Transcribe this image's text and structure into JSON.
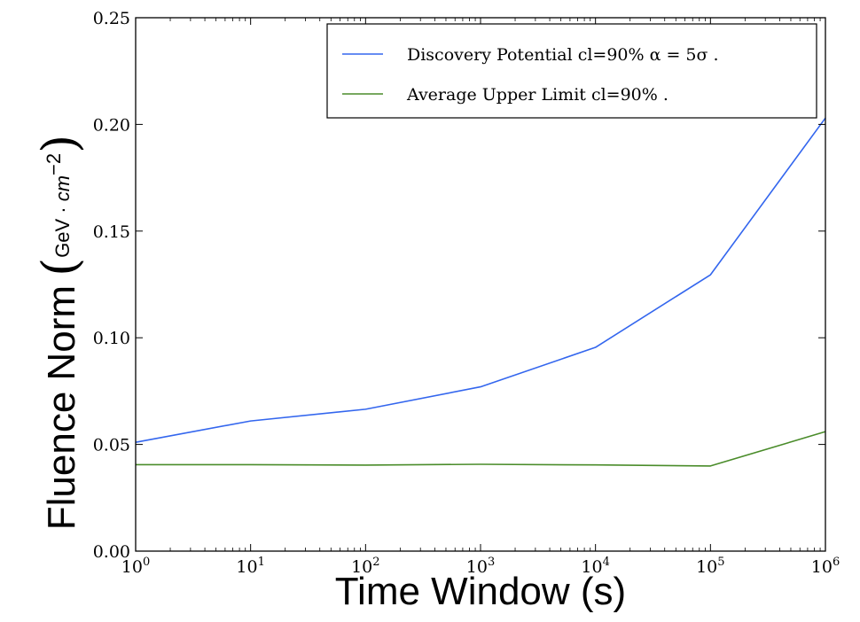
{
  "chart_data": {
    "type": "line",
    "xscale": "log",
    "x": [
      1,
      10,
      100,
      1000,
      10000,
      100000,
      1000000
    ],
    "xlim": [
      1,
      1000000
    ],
    "ylim": [
      0.0,
      0.25
    ],
    "xticks": [
      {
        "base": "10",
        "exp": "0"
      },
      {
        "base": "10",
        "exp": "1"
      },
      {
        "base": "10",
        "exp": "2"
      },
      {
        "base": "10",
        "exp": "3"
      },
      {
        "base": "10",
        "exp": "4"
      },
      {
        "base": "10",
        "exp": "5"
      },
      {
        "base": "10",
        "exp": "6"
      }
    ],
    "yticks": [
      0.0,
      0.05,
      0.1,
      0.15,
      0.2,
      0.25
    ],
    "ytick_labels": [
      "0.00",
      "0.05",
      "0.10",
      "0.15",
      "0.20",
      "0.25"
    ],
    "xlabel": "Time Window (s)",
    "ylabel": {
      "main": "Fluence Norm",
      "unit_prefix": "GeV · ",
      "unit_var": "cm",
      "unit_exp": "−2"
    },
    "grid": false,
    "legend_position": "top-right",
    "series": [
      {
        "name": "Discovery Potential cl=90% α = 5σ .",
        "color": "#3366ee",
        "values": [
          0.051,
          0.061,
          0.0665,
          0.077,
          0.0955,
          0.1295,
          0.203
        ]
      },
      {
        "name": "Average Upper Limit cl=90% .",
        "color": "#4a8c2a",
        "values": [
          0.0405,
          0.0405,
          0.0403,
          0.0407,
          0.0404,
          0.0399,
          0.056
        ]
      }
    ]
  }
}
